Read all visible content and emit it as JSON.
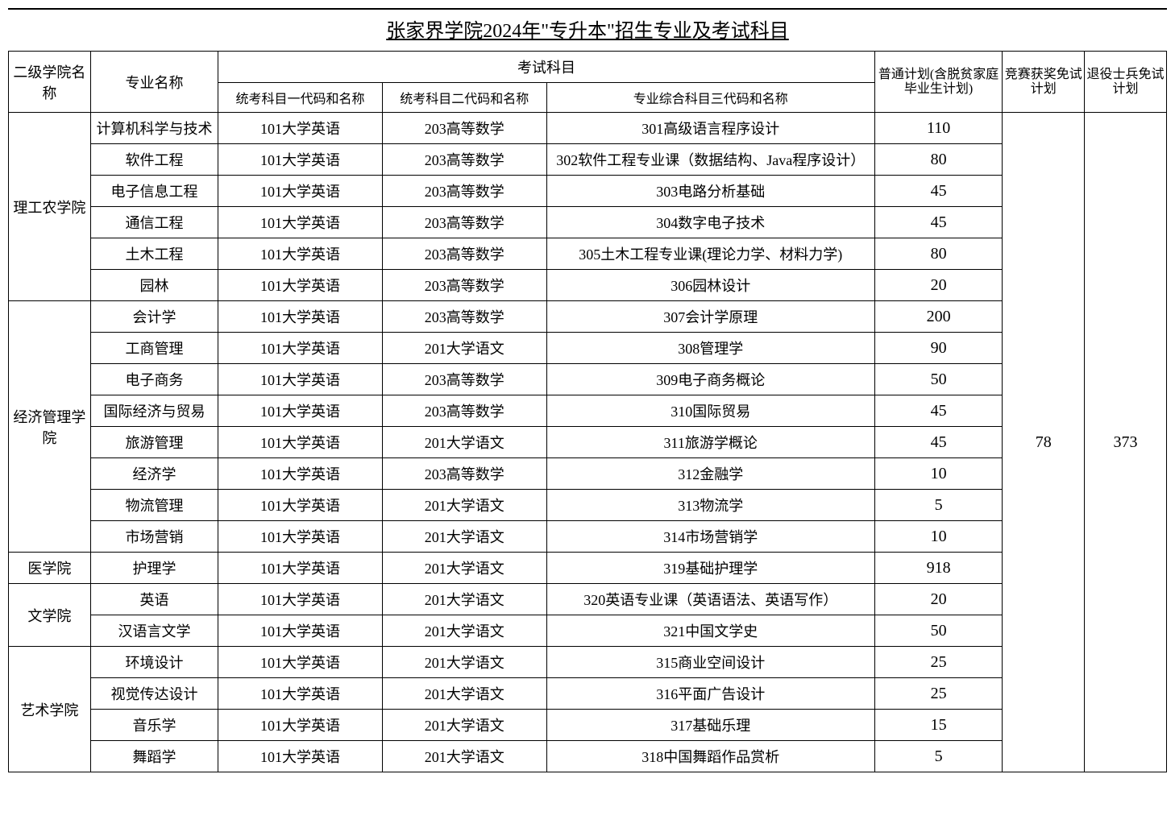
{
  "title": "张家界学院2024年\"专升本\"招生专业及考试科目",
  "headers": {
    "college": "二级学院名称",
    "major": "专业名称",
    "subjects": "考试科目",
    "sub1": "统考科目一代码和名称",
    "sub2": "统考科目二代码和名称",
    "sub3": "专业综合科目三代码和名称",
    "plan": "普通计划(含脱贫家庭毕业生计划)",
    "award": "竞赛获奖免试计划",
    "veteran": "退役士兵免试计划"
  },
  "award_total": "78",
  "veteran_total": "373",
  "colleges": [
    {
      "name": "理工农学院",
      "rows": [
        {
          "major": "计算机科学与技术",
          "s1": "101大学英语",
          "s2": "203高等数学",
          "s3": "301高级语言程序设计",
          "plan": "110"
        },
        {
          "major": "软件工程",
          "s1": "101大学英语",
          "s2": "203高等数学",
          "s3": "302软件工程专业课（数据结构、Java程序设计）",
          "plan": "80"
        },
        {
          "major": "电子信息工程",
          "s1": "101大学英语",
          "s2": "203高等数学",
          "s3": "303电路分析基础",
          "plan": "45"
        },
        {
          "major": "通信工程",
          "s1": "101大学英语",
          "s2": "203高等数学",
          "s3": "304数字电子技术",
          "plan": "45"
        },
        {
          "major": "土木工程",
          "s1": "101大学英语",
          "s2": "203高等数学",
          "s3": "305土木工程专业课(理论力学、材料力学)",
          "plan": "80"
        },
        {
          "major": "园林",
          "s1": "101大学英语",
          "s2": "203高等数学",
          "s3": "306园林设计",
          "plan": "20"
        }
      ]
    },
    {
      "name": "经济管理学院",
      "rows": [
        {
          "major": "会计学",
          "s1": "101大学英语",
          "s2": "203高等数学",
          "s3": "307会计学原理",
          "plan": "200"
        },
        {
          "major": "工商管理",
          "s1": "101大学英语",
          "s2": "201大学语文",
          "s3": "308管理学",
          "plan": "90"
        },
        {
          "major": "电子商务",
          "s1": "101大学英语",
          "s2": "203高等数学",
          "s3": "309电子商务概论",
          "plan": "50"
        },
        {
          "major": "国际经济与贸易",
          "s1": "101大学英语",
          "s2": "203高等数学",
          "s3": "310国际贸易",
          "plan": "45"
        },
        {
          "major": "旅游管理",
          "s1": "101大学英语",
          "s2": "201大学语文",
          "s3": "311旅游学概论",
          "plan": "45"
        },
        {
          "major": "经济学",
          "s1": "101大学英语",
          "s2": "203高等数学",
          "s3": "312金融学",
          "plan": "10"
        },
        {
          "major": "物流管理",
          "s1": "101大学英语",
          "s2": "201大学语文",
          "s3": "313物流学",
          "plan": "5"
        },
        {
          "major": "市场营销",
          "s1": "101大学英语",
          "s2": "201大学语文",
          "s3": "314市场营销学",
          "plan": "10"
        }
      ]
    },
    {
      "name": "医学院",
      "rows": [
        {
          "major": "护理学",
          "s1": "101大学英语",
          "s2": "201大学语文",
          "s3": "319基础护理学",
          "plan": "918"
        }
      ]
    },
    {
      "name": "文学院",
      "rows": [
        {
          "major": "英语",
          "s1": "101大学英语",
          "s2": "201大学语文",
          "s3": "320英语专业课（英语语法、英语写作）",
          "plan": "20"
        },
        {
          "major": "汉语言文学",
          "s1": "101大学英语",
          "s2": "201大学语文",
          "s3": "321中国文学史",
          "plan": "50"
        }
      ]
    },
    {
      "name": "艺术学院",
      "rows": [
        {
          "major": "环境设计",
          "s1": "101大学英语",
          "s2": "201大学语文",
          "s3": "315商业空间设计",
          "plan": "25"
        },
        {
          "major": "视觉传达设计",
          "s1": "101大学英语",
          "s2": "201大学语文",
          "s3": "316平面广告设计",
          "plan": "25"
        },
        {
          "major": "音乐学",
          "s1": "101大学英语",
          "s2": "201大学语文",
          "s3": "317基础乐理",
          "plan": "15"
        },
        {
          "major": "舞蹈学",
          "s1": "101大学英语",
          "s2": "201大学语文",
          "s3": "318中国舞蹈作品赏析",
          "plan": "5"
        }
      ]
    }
  ]
}
